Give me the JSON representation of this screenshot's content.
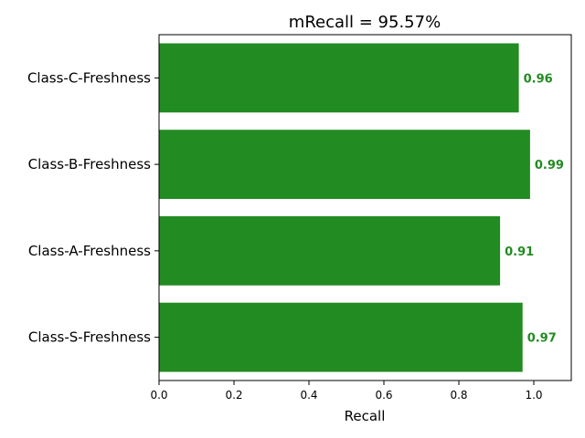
{
  "chart_data": {
    "type": "bar",
    "orientation": "horizontal",
    "title": "mRecall = 95.57%",
    "xlabel": "Recall",
    "ylabel": "",
    "xlim": [
      0,
      1.1
    ],
    "xticks": [
      "0.0",
      "0.2",
      "0.4",
      "0.6",
      "0.8",
      "1.0"
    ],
    "xtick_values": [
      0,
      0.2,
      0.4,
      0.6,
      0.8,
      1.0
    ],
    "categories": [
      "Class-C-Freshness",
      "Class-B-Freshness",
      "Class-A-Freshness",
      "Class-S-Freshness"
    ],
    "values": [
      0.96,
      0.99,
      0.91,
      0.97
    ],
    "data_labels": [
      "0.96",
      "0.99",
      "0.91",
      "0.97"
    ],
    "bar_color": "#228b22",
    "label_color": "#228b22",
    "grid": false,
    "legend": "none"
  }
}
